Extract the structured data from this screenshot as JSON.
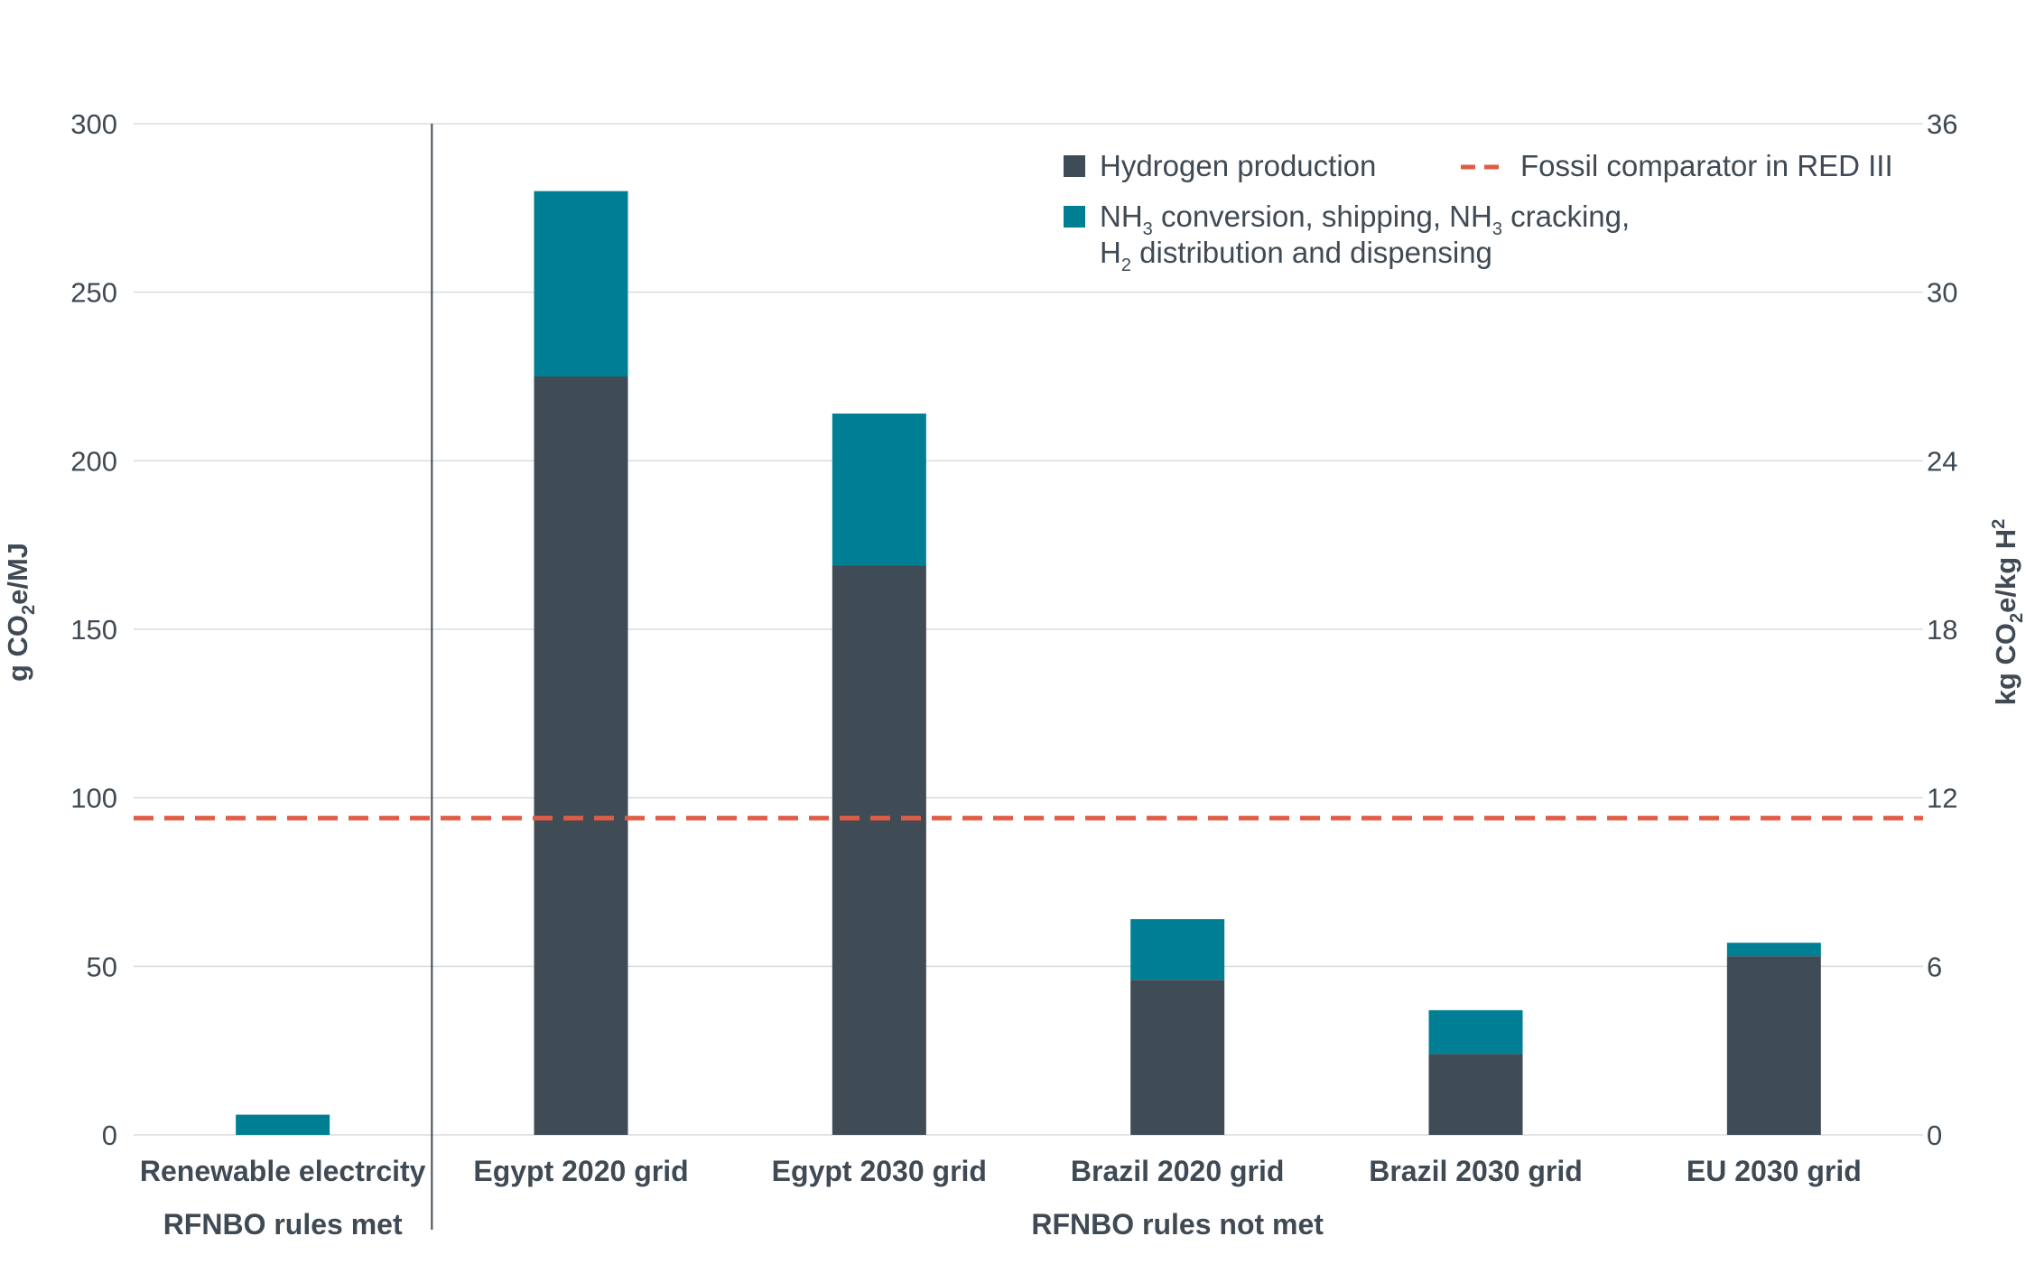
{
  "chart_data": {
    "type": "bar",
    "stacked": true,
    "categories": [
      "Renewable electrcity",
      "Egypt 2020 grid",
      "Egypt 2030 grid",
      "Brazil 2020 grid",
      "Brazil 2030 grid",
      "EU 2030 grid"
    ],
    "groups": [
      {
        "label": "RFNBO rules met",
        "categories": [
          0
        ]
      },
      {
        "label": "RFNBO rules not met",
        "categories": [
          1,
          2,
          3,
          4,
          5
        ]
      }
    ],
    "series": [
      {
        "name": "Hydrogen production",
        "color": "#3f4b55",
        "values": [
          0,
          225,
          169,
          46,
          24,
          53
        ]
      },
      {
        "name": "NH3 conversion, shipping, NH3 cracking, H2 distribution and dispensing",
        "color": "#007f94",
        "values": [
          6,
          55,
          45,
          18,
          13,
          4
        ]
      }
    ],
    "reference_line": {
      "name": "Fossil comparator in RED III",
      "value": 94,
      "color": "#e05c45",
      "style": "dashed"
    },
    "ylabel": "g CO2e/MJ",
    "ylim": [
      0,
      300
    ],
    "yticks": [
      "0",
      "50",
      "100",
      "150",
      "200",
      "250",
      "300"
    ],
    "y2label": "kg CO2e/kg H2",
    "y2lim": [
      0,
      36
    ],
    "y2ticks": [
      "0",
      "6",
      "12",
      "18",
      "24",
      "30",
      "36"
    ],
    "legend": {
      "position": "top-right",
      "hydrogen": "Hydrogen production",
      "fossil": "Fossil comparator in RED III",
      "nh3_part1": "NH",
      "nh3_sub1": "3",
      "nh3_part2": " conversion, shipping, NH",
      "nh3_sub2": "3",
      "nh3_part3": " cracking,",
      "nh3_line2_a": "H",
      "nh3_line2_sub": "2",
      "nh3_line2_b": " distribution and dispensing"
    },
    "ylabel_parts": {
      "a": "g CO",
      "sub": "2",
      "b": "e/MJ"
    },
    "y2label_parts": {
      "a": "kg CO",
      "sub": "2",
      "b": "e/kg H",
      "sup": "2"
    }
  }
}
